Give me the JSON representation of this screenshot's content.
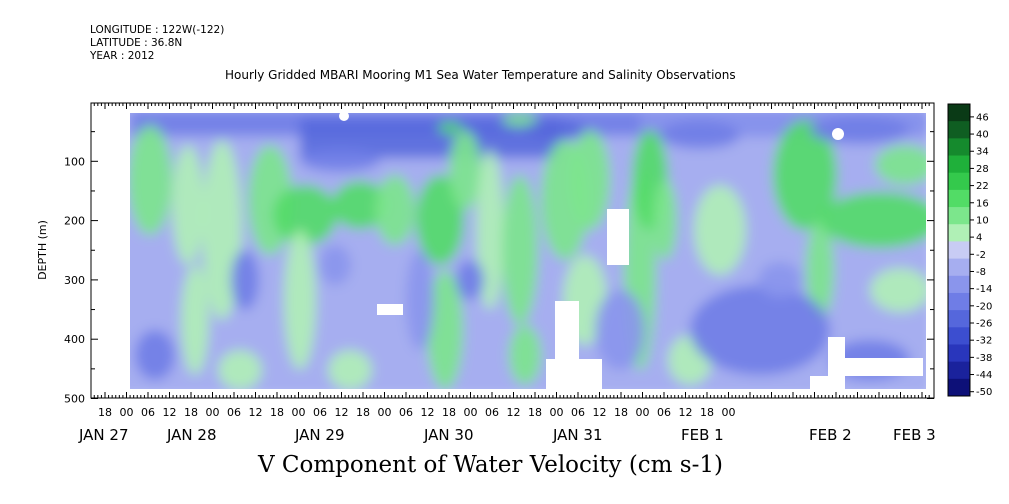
{
  "header": {
    "longitude": "LONGITUDE : 122W(-122)",
    "latitude": "LATITUDE : 36.8N",
    "year": "YEAR : 2012"
  },
  "chart_data": {
    "type": "heatmap",
    "title": "Hourly Gridded MBARI Mooring M1 Sea Water Temperature and Salinity Observations",
    "xlabel": "V Component of Water Velocity (cm s-1)",
    "ylabel": "DEPTH (m)",
    "y_axis": {
      "ticks": [
        100,
        200,
        300,
        400,
        500
      ],
      "ylim": [
        500,
        0
      ],
      "unit": "m"
    },
    "x_axis": {
      "hour_ticks": [
        "18",
        "00",
        "06",
        "12",
        "18",
        "00",
        "06",
        "12",
        "18",
        "00",
        "06",
        "12",
        "18",
        "00",
        "06",
        "12",
        "18",
        "00",
        "06",
        "12",
        "18",
        "00",
        "06",
        "12",
        "18",
        "00",
        "06",
        "12",
        "18",
        "00"
      ],
      "day_labels": [
        "JAN 27",
        "JAN 28",
        "JAN 29",
        "JAN 30",
        "JAN 31",
        "FEB  1",
        "FEB  2",
        "FEB 3"
      ]
    },
    "colorbar": {
      "levels": [
        "46",
        "40",
        "34",
        "28",
        "22",
        "16",
        "10",
        "4",
        "-2",
        "-8",
        "-14",
        "-20",
        "-26",
        "-32",
        "-38",
        "-44",
        "-50"
      ],
      "colors": [
        "#0a3a16",
        "#0f5e22",
        "#158a2d",
        "#1fb03a",
        "#34c94c",
        "#52dc66",
        "#7ce68c",
        "#b0f0b6",
        "#c8ccf4",
        "#a6aef0",
        "#8a95ec",
        "#6f7de6",
        "#5567dc",
        "#3c4ed0",
        "#2936bc",
        "#1a229c",
        "#0d1078"
      ]
    },
    "grid": false
  }
}
